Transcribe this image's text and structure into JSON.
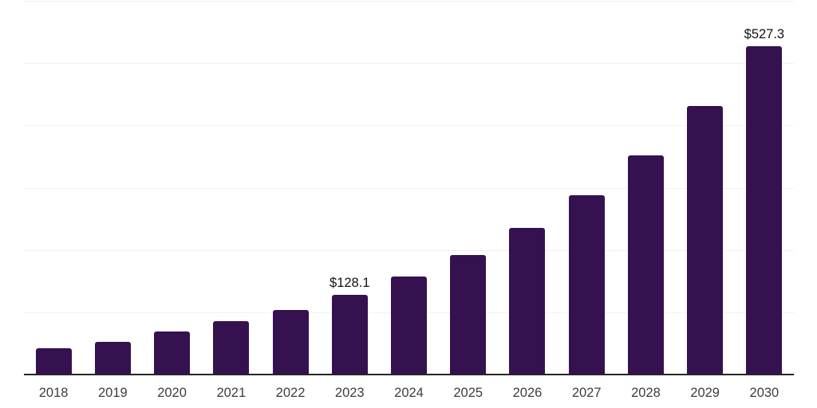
{
  "chart_data": {
    "type": "bar",
    "title": "",
    "xlabel": "",
    "ylabel": "",
    "categories": [
      "2018",
      "2019",
      "2020",
      "2021",
      "2022",
      "2023",
      "2024",
      "2025",
      "2026",
      "2027",
      "2028",
      "2029",
      "2030"
    ],
    "values": [
      41.7,
      52.3,
      69.0,
      85.6,
      103.4,
      128.1,
      156.8,
      191.9,
      234.9,
      287.5,
      351.9,
      430.7,
      527.3
    ],
    "data_labels": [
      "",
      "",
      "",
      "",
      "",
      "$128.1",
      "",
      "",
      "",
      "",
      "",
      "",
      "$527.3"
    ],
    "ylim": [
      0,
      600
    ],
    "grid_step": 100,
    "grid": "horizontal",
    "legend": "none",
    "y_axis_labels_visible": false,
    "colors": {
      "bar": "#36114f",
      "gridline": "#f1f1f1",
      "axis_line": "#262626",
      "tick_label": "#3d3d3d",
      "data_label": "#111111",
      "background": "#ffffff"
    }
  }
}
